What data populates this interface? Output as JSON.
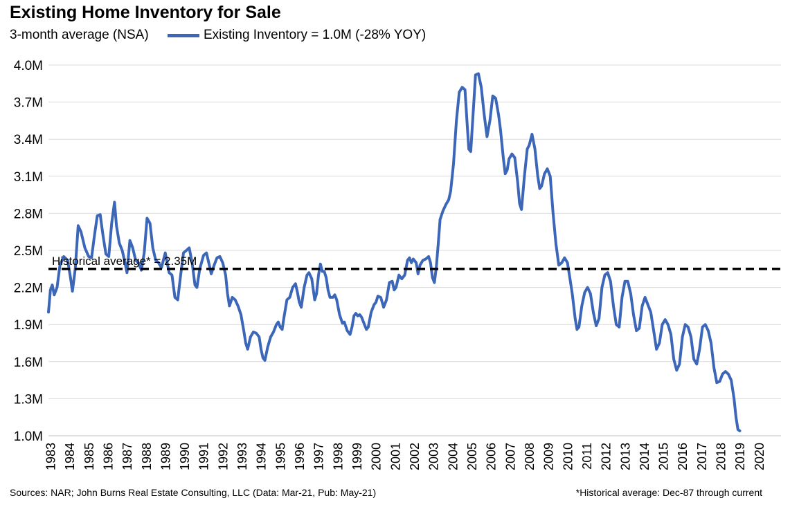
{
  "header": {
    "title": "Existing Home Inventory for Sale",
    "subtitle": "3-month average (NSA)",
    "legend_label": "Existing Inventory = 1.0M (-28% YOY)"
  },
  "footer": {
    "sources": "Sources: NAR; John Burns Real Estate Consulting, LLC (Data: Mar-21, Pub: May-21)",
    "note": "*Historical average: Dec-87 through current"
  },
  "colors": {
    "series": "#3c67b9",
    "grid": "#d9d9d9",
    "average": "#000000"
  },
  "chart_data": {
    "type": "line",
    "title": "Existing Home Inventory for Sale",
    "subtitle": "3-month average (NSA)",
    "xlabel": "",
    "ylabel": "",
    "ylim": [
      1.0,
      4.0
    ],
    "y_ticks": [
      {
        "value": 1.0,
        "label": "1.0M"
      },
      {
        "value": 1.3,
        "label": "1.3M"
      },
      {
        "value": 1.6,
        "label": "1.6M"
      },
      {
        "value": 1.9,
        "label": "1.9M"
      },
      {
        "value": 2.2,
        "label": "2.2M"
      },
      {
        "value": 2.5,
        "label": "2.5M"
      },
      {
        "value": 2.8,
        "label": "2.8M"
      },
      {
        "value": 3.1,
        "label": "3.1M"
      },
      {
        "value": 3.4,
        "label": "3.4M"
      },
      {
        "value": 3.7,
        "label": "3.7M"
      },
      {
        "value": 4.0,
        "label": "4.0M"
      }
    ],
    "x_range": [
      1983.0,
      2021.25
    ],
    "x_ticks": [
      "1983",
      "1984",
      "1985",
      "1986",
      "1987",
      "1988",
      "1989",
      "1990",
      "1991",
      "1992",
      "1993",
      "1994",
      "1995",
      "1996",
      "1997",
      "1998",
      "1999",
      "2000",
      "2001",
      "2002",
      "2003",
      "2004",
      "2005",
      "2006",
      "2007",
      "2008",
      "2009",
      "2010",
      "2011",
      "2012",
      "2013",
      "2014",
      "2015",
      "2016",
      "2017",
      "2018",
      "2019",
      "2020"
    ],
    "grid": true,
    "legend": "top",
    "reference_line": {
      "value": 2.35,
      "label": "Historical average* = 2.35M"
    },
    "series": [
      {
        "name": "Existing Inventory = 1.0M (-28% YOY)",
        "points": [
          [
            1983.0,
            2.0
          ],
          [
            1983.1,
            2.18
          ],
          [
            1983.2,
            2.22
          ],
          [
            1983.3,
            2.14
          ],
          [
            1983.45,
            2.2
          ],
          [
            1983.6,
            2.38
          ],
          [
            1983.8,
            2.45
          ],
          [
            1984.0,
            2.42
          ],
          [
            1984.15,
            2.28
          ],
          [
            1984.25,
            2.17
          ],
          [
            1984.4,
            2.35
          ],
          [
            1984.55,
            2.7
          ],
          [
            1984.7,
            2.65
          ],
          [
            1984.9,
            2.52
          ],
          [
            1985.1,
            2.45
          ],
          [
            1985.25,
            2.44
          ],
          [
            1985.4,
            2.62
          ],
          [
            1985.55,
            2.78
          ],
          [
            1985.7,
            2.79
          ],
          [
            1985.85,
            2.62
          ],
          [
            1986.0,
            2.47
          ],
          [
            1986.15,
            2.45
          ],
          [
            1986.3,
            2.72
          ],
          [
            1986.45,
            2.89
          ],
          [
            1986.55,
            2.7
          ],
          [
            1986.7,
            2.56
          ],
          [
            1986.85,
            2.5
          ],
          [
            1987.0,
            2.4
          ],
          [
            1987.1,
            2.32
          ],
          [
            1987.25,
            2.58
          ],
          [
            1987.4,
            2.52
          ],
          [
            1987.55,
            2.42
          ],
          [
            1987.7,
            2.4
          ],
          [
            1987.85,
            2.34
          ],
          [
            1988.0,
            2.48
          ],
          [
            1988.15,
            2.76
          ],
          [
            1988.3,
            2.72
          ],
          [
            1988.45,
            2.52
          ],
          [
            1988.6,
            2.42
          ],
          [
            1988.75,
            2.4
          ],
          [
            1988.9,
            2.36
          ],
          [
            1989.1,
            2.48
          ],
          [
            1989.3,
            2.32
          ],
          [
            1989.45,
            2.3
          ],
          [
            1989.6,
            2.12
          ],
          [
            1989.75,
            2.1
          ],
          [
            1989.9,
            2.3
          ],
          [
            1990.05,
            2.48
          ],
          [
            1990.2,
            2.5
          ],
          [
            1990.35,
            2.52
          ],
          [
            1990.5,
            2.4
          ],
          [
            1990.65,
            2.22
          ],
          [
            1990.75,
            2.2
          ],
          [
            1990.9,
            2.35
          ],
          [
            1991.1,
            2.46
          ],
          [
            1991.25,
            2.48
          ],
          [
            1991.4,
            2.38
          ],
          [
            1991.5,
            2.31
          ],
          [
            1991.65,
            2.38
          ],
          [
            1991.8,
            2.44
          ],
          [
            1991.95,
            2.45
          ],
          [
            1992.1,
            2.4
          ],
          [
            1992.25,
            2.3
          ],
          [
            1992.35,
            2.15
          ],
          [
            1992.45,
            2.05
          ],
          [
            1992.6,
            2.12
          ],
          [
            1992.75,
            2.1
          ],
          [
            1992.9,
            2.05
          ],
          [
            1993.05,
            1.98
          ],
          [
            1993.2,
            1.85
          ],
          [
            1993.3,
            1.75
          ],
          [
            1993.4,
            1.7
          ],
          [
            1993.55,
            1.8
          ],
          [
            1993.7,
            1.84
          ],
          [
            1993.85,
            1.83
          ],
          [
            1994.0,
            1.8
          ],
          [
            1994.1,
            1.7
          ],
          [
            1994.2,
            1.63
          ],
          [
            1994.3,
            1.61
          ],
          [
            1994.45,
            1.72
          ],
          [
            1994.6,
            1.8
          ],
          [
            1994.75,
            1.84
          ],
          [
            1994.9,
            1.9
          ],
          [
            1995.0,
            1.92
          ],
          [
            1995.1,
            1.88
          ],
          [
            1995.2,
            1.86
          ],
          [
            1995.3,
            1.96
          ],
          [
            1995.45,
            2.1
          ],
          [
            1995.6,
            2.12
          ],
          [
            1995.75,
            2.2
          ],
          [
            1995.9,
            2.23
          ],
          [
            1996.0,
            2.16
          ],
          [
            1996.1,
            2.08
          ],
          [
            1996.2,
            2.04
          ],
          [
            1996.35,
            2.2
          ],
          [
            1996.5,
            2.3
          ],
          [
            1996.6,
            2.32
          ],
          [
            1996.75,
            2.27
          ],
          [
            1996.9,
            2.1
          ],
          [
            1997.0,
            2.15
          ],
          [
            1997.1,
            2.3
          ],
          [
            1997.2,
            2.39
          ],
          [
            1997.3,
            2.33
          ],
          [
            1997.4,
            2.33
          ],
          [
            1997.5,
            2.28
          ],
          [
            1997.6,
            2.18
          ],
          [
            1997.7,
            2.12
          ],
          [
            1997.85,
            2.12
          ],
          [
            1997.95,
            2.14
          ],
          [
            1998.05,
            2.1
          ],
          [
            1998.2,
            1.98
          ],
          [
            1998.35,
            1.91
          ],
          [
            1998.45,
            1.92
          ],
          [
            1998.6,
            1.85
          ],
          [
            1998.75,
            1.82
          ],
          [
            1998.85,
            1.88
          ],
          [
            1998.95,
            1.97
          ],
          [
            1999.05,
            1.99
          ],
          [
            1999.15,
            1.97
          ],
          [
            1999.25,
            1.98
          ],
          [
            1999.35,
            1.96
          ],
          [
            1999.5,
            1.9
          ],
          [
            1999.6,
            1.86
          ],
          [
            1999.7,
            1.88
          ],
          [
            1999.85,
            2.0
          ],
          [
            2000.0,
            2.06
          ],
          [
            2000.1,
            2.08
          ],
          [
            2000.2,
            2.13
          ],
          [
            2000.35,
            2.12
          ],
          [
            2000.5,
            2.04
          ],
          [
            2000.65,
            2.1
          ],
          [
            2000.8,
            2.24
          ],
          [
            2000.95,
            2.25
          ],
          [
            2001.05,
            2.18
          ],
          [
            2001.15,
            2.2
          ],
          [
            2001.3,
            2.3
          ],
          [
            2001.45,
            2.27
          ],
          [
            2001.6,
            2.3
          ],
          [
            2001.75,
            2.42
          ],
          [
            2001.85,
            2.44
          ],
          [
            2001.95,
            2.4
          ],
          [
            2002.05,
            2.43
          ],
          [
            2002.2,
            2.4
          ],
          [
            2002.3,
            2.31
          ],
          [
            2002.4,
            2.38
          ],
          [
            2002.55,
            2.42
          ],
          [
            2002.7,
            2.43
          ],
          [
            2002.85,
            2.45
          ],
          [
            2002.95,
            2.4
          ],
          [
            2003.05,
            2.28
          ],
          [
            2003.15,
            2.24
          ],
          [
            2003.25,
            2.36
          ],
          [
            2003.35,
            2.55
          ],
          [
            2003.45,
            2.75
          ],
          [
            2003.6,
            2.82
          ],
          [
            2003.75,
            2.87
          ],
          [
            2003.9,
            2.91
          ],
          [
            2004.0,
            2.98
          ],
          [
            2004.15,
            3.2
          ],
          [
            2004.3,
            3.55
          ],
          [
            2004.45,
            3.78
          ],
          [
            2004.6,
            3.82
          ],
          [
            2004.75,
            3.8
          ],
          [
            2004.85,
            3.55
          ],
          [
            2004.95,
            3.32
          ],
          [
            2005.05,
            3.3
          ],
          [
            2005.15,
            3.55
          ],
          [
            2005.3,
            3.92
          ],
          [
            2005.45,
            3.93
          ],
          [
            2005.6,
            3.82
          ],
          [
            2005.75,
            3.6
          ],
          [
            2005.9,
            3.42
          ],
          [
            2006.05,
            3.55
          ],
          [
            2006.2,
            3.75
          ],
          [
            2006.35,
            3.73
          ],
          [
            2006.5,
            3.6
          ],
          [
            2006.6,
            3.48
          ],
          [
            2006.75,
            3.25
          ],
          [
            2006.85,
            3.12
          ],
          [
            2006.95,
            3.15
          ],
          [
            2007.05,
            3.24
          ],
          [
            2007.2,
            3.28
          ],
          [
            2007.35,
            3.25
          ],
          [
            2007.5,
            3.05
          ],
          [
            2007.6,
            2.88
          ],
          [
            2007.7,
            2.83
          ],
          [
            2007.85,
            3.1
          ],
          [
            2008.0,
            3.32
          ],
          [
            2008.1,
            3.35
          ],
          [
            2008.25,
            3.44
          ],
          [
            2008.4,
            3.32
          ],
          [
            2008.55,
            3.1
          ],
          [
            2008.65,
            3.0
          ],
          [
            2008.75,
            3.02
          ],
          [
            2008.9,
            3.12
          ],
          [
            2009.05,
            3.16
          ],
          [
            2009.2,
            3.1
          ],
          [
            2009.35,
            2.8
          ],
          [
            2009.5,
            2.55
          ],
          [
            2009.65,
            2.38
          ],
          [
            2009.8,
            2.4
          ],
          [
            2009.95,
            2.44
          ],
          [
            2010.1,
            2.4
          ],
          [
            2010.2,
            2.3
          ],
          [
            2010.35,
            2.15
          ],
          [
            2010.5,
            1.95
          ],
          [
            2010.6,
            1.86
          ],
          [
            2010.7,
            1.88
          ],
          [
            2010.85,
            2.05
          ],
          [
            2011.0,
            2.16
          ],
          [
            2011.15,
            2.2
          ],
          [
            2011.3,
            2.15
          ],
          [
            2011.45,
            2.0
          ],
          [
            2011.6,
            1.89
          ],
          [
            2011.75,
            1.95
          ],
          [
            2011.9,
            2.2
          ],
          [
            2012.05,
            2.3
          ],
          [
            2012.2,
            2.32
          ],
          [
            2012.35,
            2.25
          ],
          [
            2012.5,
            2.05
          ],
          [
            2012.65,
            1.9
          ],
          [
            2012.8,
            1.88
          ],
          [
            2012.95,
            2.12
          ],
          [
            2013.1,
            2.25
          ],
          [
            2013.25,
            2.25
          ],
          [
            2013.4,
            2.15
          ],
          [
            2013.55,
            1.98
          ],
          [
            2013.7,
            1.85
          ],
          [
            2013.85,
            1.87
          ],
          [
            2014.0,
            2.05
          ],
          [
            2014.15,
            2.12
          ],
          [
            2014.3,
            2.06
          ],
          [
            2014.45,
            2.0
          ],
          [
            2014.6,
            1.85
          ],
          [
            2014.75,
            1.7
          ],
          [
            2014.9,
            1.75
          ],
          [
            2015.05,
            1.9
          ],
          [
            2015.2,
            1.94
          ],
          [
            2015.35,
            1.9
          ],
          [
            2015.5,
            1.82
          ],
          [
            2015.65,
            1.62
          ],
          [
            2015.8,
            1.53
          ],
          [
            2015.95,
            1.58
          ],
          [
            2016.1,
            1.8
          ],
          [
            2016.25,
            1.9
          ],
          [
            2016.4,
            1.88
          ],
          [
            2016.55,
            1.8
          ],
          [
            2016.7,
            1.62
          ],
          [
            2016.85,
            1.58
          ],
          [
            2017.0,
            1.7
          ],
          [
            2017.15,
            1.88
          ],
          [
            2017.3,
            1.9
          ],
          [
            2017.45,
            1.85
          ],
          [
            2017.6,
            1.75
          ],
          [
            2017.75,
            1.55
          ],
          [
            2017.9,
            1.43
          ],
          [
            2018.05,
            1.44
          ],
          [
            2018.2,
            1.5
          ],
          [
            2018.35,
            1.52
          ],
          [
            2018.5,
            1.5
          ],
          [
            2018.65,
            1.45
          ],
          [
            2018.8,
            1.3
          ],
          [
            2018.9,
            1.15
          ],
          [
            2019.0,
            1.05
          ],
          [
            2019.1,
            1.04
          ]
        ]
      }
    ]
  }
}
